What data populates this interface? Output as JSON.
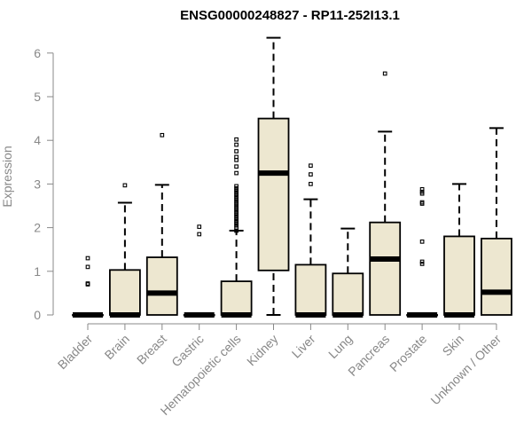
{
  "chart_data": {
    "type": "box",
    "title": "ENSG00000248827 - RP11-252I13.1",
    "xlabel": "",
    "ylabel": "Expression",
    "ylim": [
      0,
      6.5
    ],
    "yticks": [
      0,
      1,
      2,
      3,
      4,
      5,
      6
    ],
    "grid": false,
    "box_fill": "#ede7d0",
    "box_stroke": "#000000",
    "categories": [
      "Bladder",
      "Brain",
      "Breast",
      "Gastric",
      "Hematopoietic cells",
      "Kidney",
      "Liver",
      "Lung",
      "Pancreas",
      "Prostate",
      "Skin",
      "Unknown / Other"
    ],
    "boxes": [
      {
        "category": "Bladder",
        "min": 0,
        "q1": 0,
        "median": 0,
        "q3": 0,
        "max": 0,
        "outliers": [
          0.7,
          0.72,
          1.1,
          1.3
        ]
      },
      {
        "category": "Brain",
        "min": 0,
        "q1": 0,
        "median": 0,
        "q3": 1.03,
        "max": 2.57,
        "outliers": [
          2.97
        ]
      },
      {
        "category": "Breast",
        "min": 0,
        "q1": 0,
        "median": 0.5,
        "q3": 1.32,
        "max": 2.98,
        "outliers": [
          4.12
        ]
      },
      {
        "category": "Gastric",
        "min": 0,
        "q1": 0,
        "median": 0,
        "q3": 0,
        "max": 0,
        "outliers": [
          1.85,
          2.02
        ]
      },
      {
        "category": "Hematopoietic cells",
        "min": 0,
        "q1": 0,
        "median": 0,
        "q3": 0.77,
        "max": 1.93,
        "outliers": [
          1.93,
          2.0,
          2.05,
          2.1,
          2.15,
          2.2,
          2.25,
          2.3,
          2.35,
          2.4,
          2.45,
          2.5,
          2.55,
          2.6,
          2.65,
          2.7,
          2.75,
          2.8,
          2.85,
          2.9,
          2.95,
          3.25,
          3.4,
          3.55,
          3.62,
          3.75,
          3.9,
          4.02
        ]
      },
      {
        "category": "Kidney",
        "min": 0,
        "q1": 1.02,
        "median": 3.25,
        "q3": 4.5,
        "max": 6.35,
        "outliers": []
      },
      {
        "category": "Liver",
        "min": 0,
        "q1": 0,
        "median": 0,
        "q3": 1.15,
        "max": 2.65,
        "outliers": [
          3.0,
          3.22,
          3.42
        ]
      },
      {
        "category": "Lung",
        "min": 0,
        "q1": 0,
        "median": 0,
        "q3": 0.95,
        "max": 1.98,
        "outliers": []
      },
      {
        "category": "Pancreas",
        "min": 0,
        "q1": 0,
        "median": 1.28,
        "q3": 2.12,
        "max": 4.2,
        "outliers": [
          5.53
        ]
      },
      {
        "category": "Prostate",
        "min": 0,
        "q1": 0,
        "median": 0,
        "q3": 0,
        "max": 0,
        "outliers": [
          1.17,
          1.22,
          1.68,
          2.55,
          2.58,
          2.78,
          2.82,
          2.88
        ]
      },
      {
        "category": "Skin",
        "min": 0,
        "q1": 0,
        "median": 0,
        "q3": 1.8,
        "max": 3.0,
        "outliers": []
      },
      {
        "category": "Unknown / Other",
        "min": 0,
        "q1": 0,
        "median": 0.52,
        "q3": 1.75,
        "max": 4.28,
        "outliers": []
      }
    ]
  }
}
